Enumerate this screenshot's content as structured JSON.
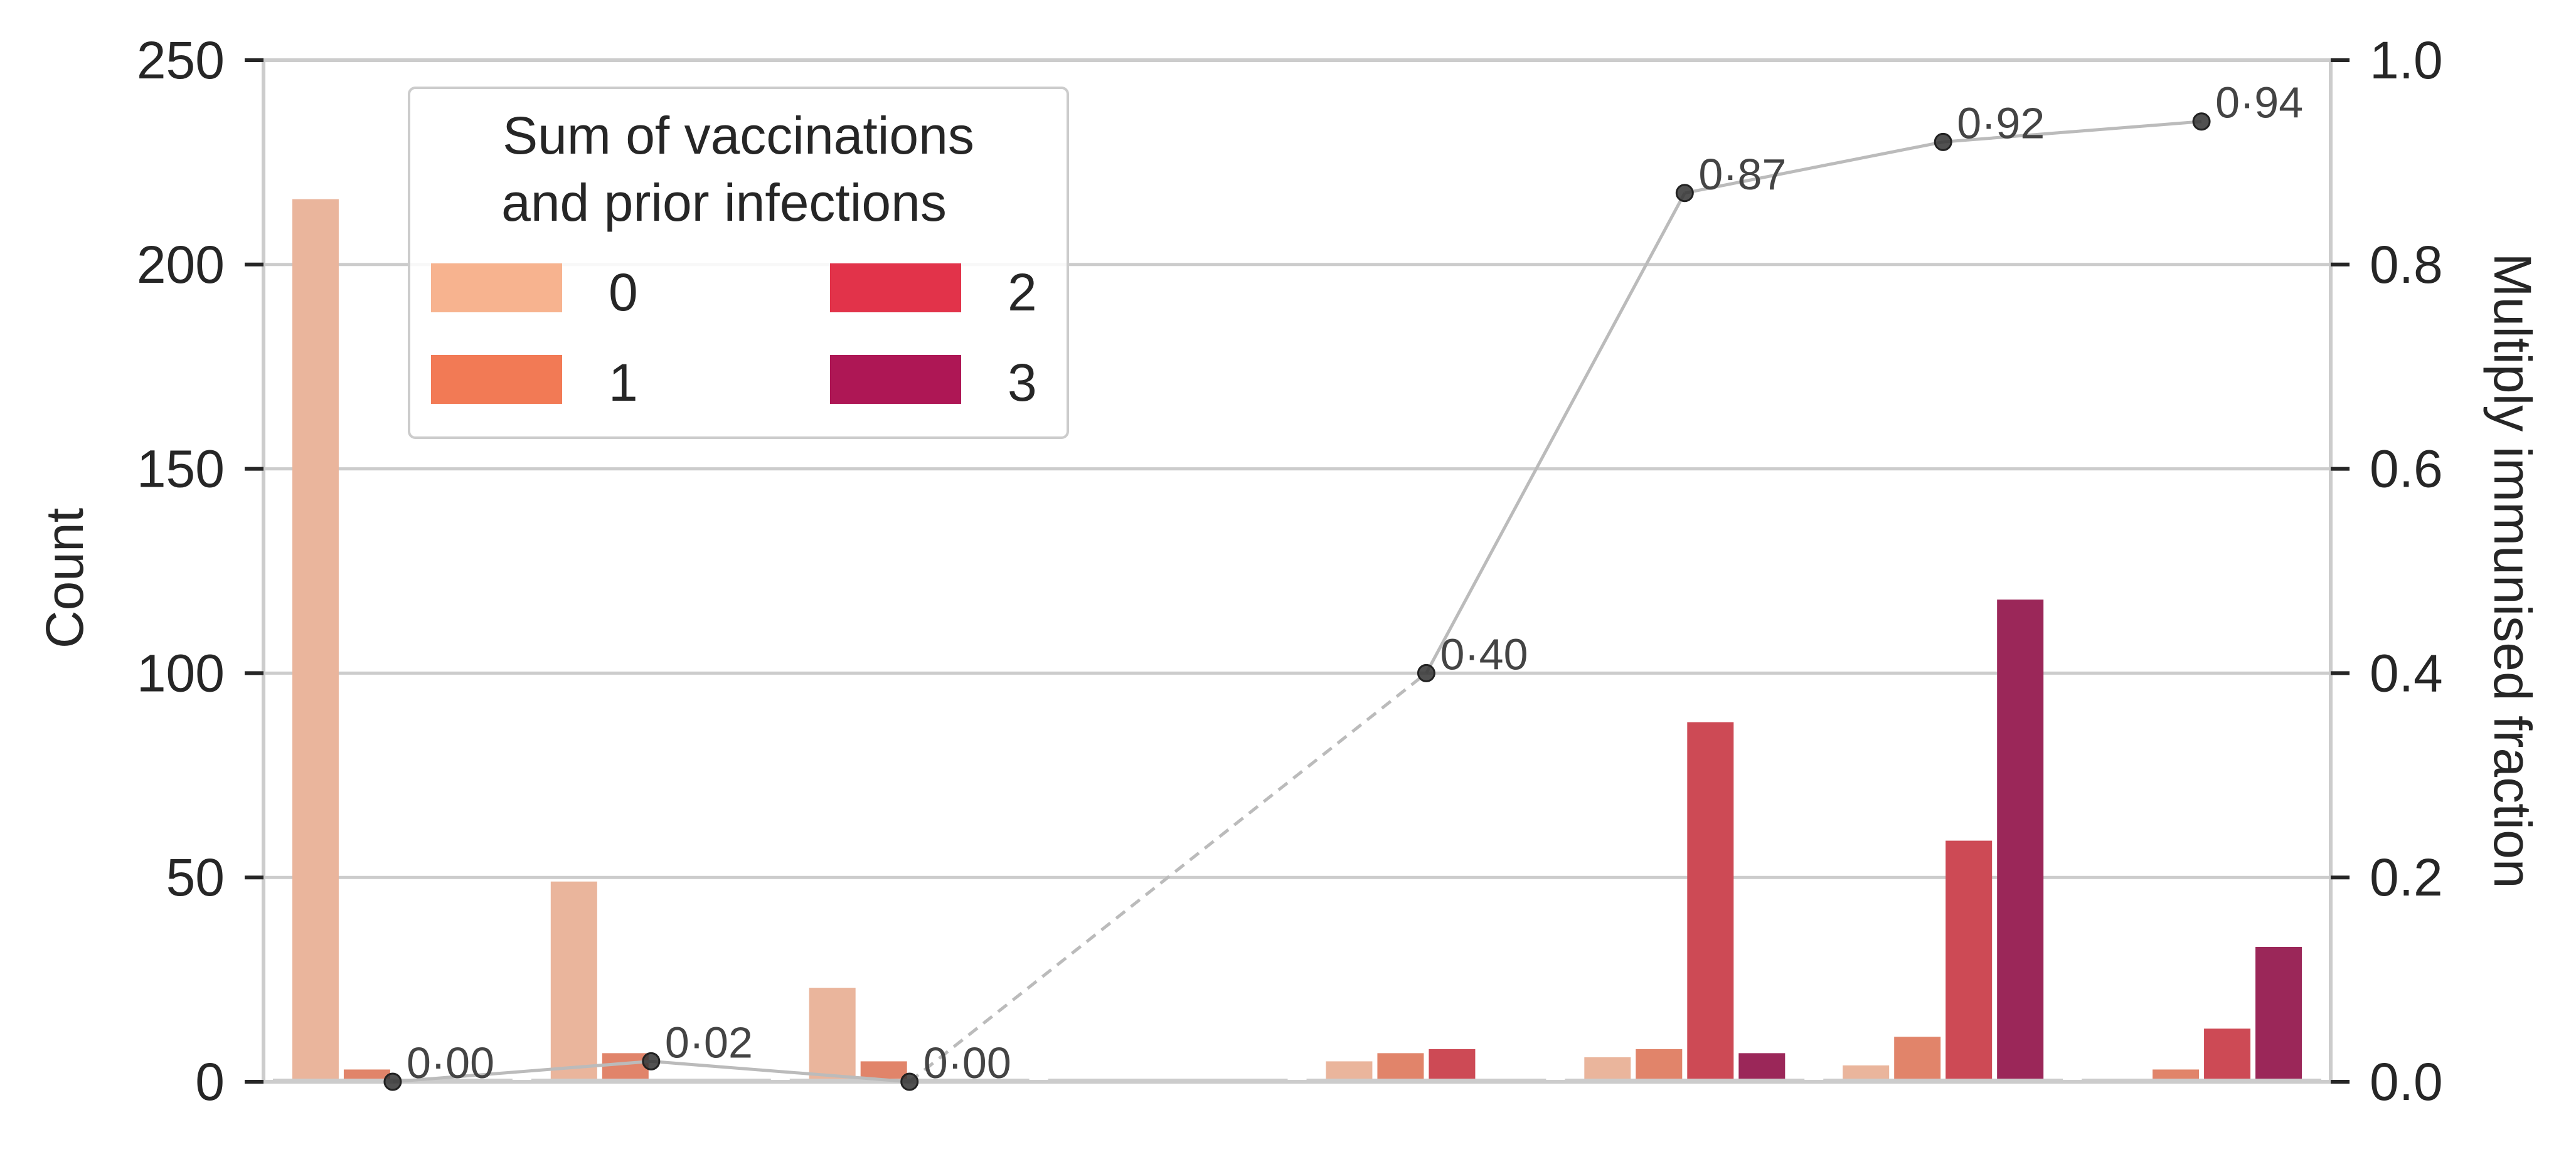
{
  "chart_data": {
    "type": "bar",
    "title": "",
    "xlabel": "",
    "ylabel": "Count",
    "y2label": "Multiply immunised fraction",
    "ylim": [
      0,
      250
    ],
    "y2lim": [
      0,
      1.0
    ],
    "yticks": [
      "0",
      "50",
      "100",
      "150",
      "200",
      "250"
    ],
    "y2ticks": [
      "0.0",
      "0.2",
      "0.4",
      "0.6",
      "0.8",
      "1.0"
    ],
    "grid": true,
    "groups": 8,
    "legend": {
      "title_lines": [
        "Sum of vaccinations",
        "and prior infections"
      ],
      "placement": "upper-left",
      "entries": [
        "0",
        "1",
        "2",
        "3"
      ]
    },
    "series": [
      {
        "name": "0",
        "color": "#eab59c",
        "values": [
          216,
          49,
          23,
          0,
          5,
          6,
          4,
          0
        ]
      },
      {
        "name": "1",
        "color": "#e1846a",
        "values": [
          3,
          7,
          5,
          0,
          7,
          8,
          11,
          3
        ]
      },
      {
        "name": "2",
        "color": "#cd4a55",
        "values": [
          0,
          0,
          0,
          0,
          8,
          88,
          59,
          13
        ]
      },
      {
        "name": "3",
        "color": "#9b2759",
        "values": [
          0,
          0,
          0,
          0,
          0,
          7,
          118,
          33
        ]
      }
    ],
    "legend_colors": [
      "#f7b38f",
      "#f27a55",
      "#e2334a",
      "#ae1755"
    ],
    "fraction_line": {
      "groups": [
        0,
        1,
        2,
        4,
        5,
        6,
        7
      ],
      "values": [
        0.0,
        0.02,
        0.0,
        0.4,
        0.87,
        0.92,
        0.94
      ],
      "labels": [
        "0·00",
        "0·02",
        "0·00",
        "0·40",
        "0·87",
        "0·92",
        "0·94"
      ],
      "dashed_segment": [
        2,
        4
      ]
    }
  }
}
